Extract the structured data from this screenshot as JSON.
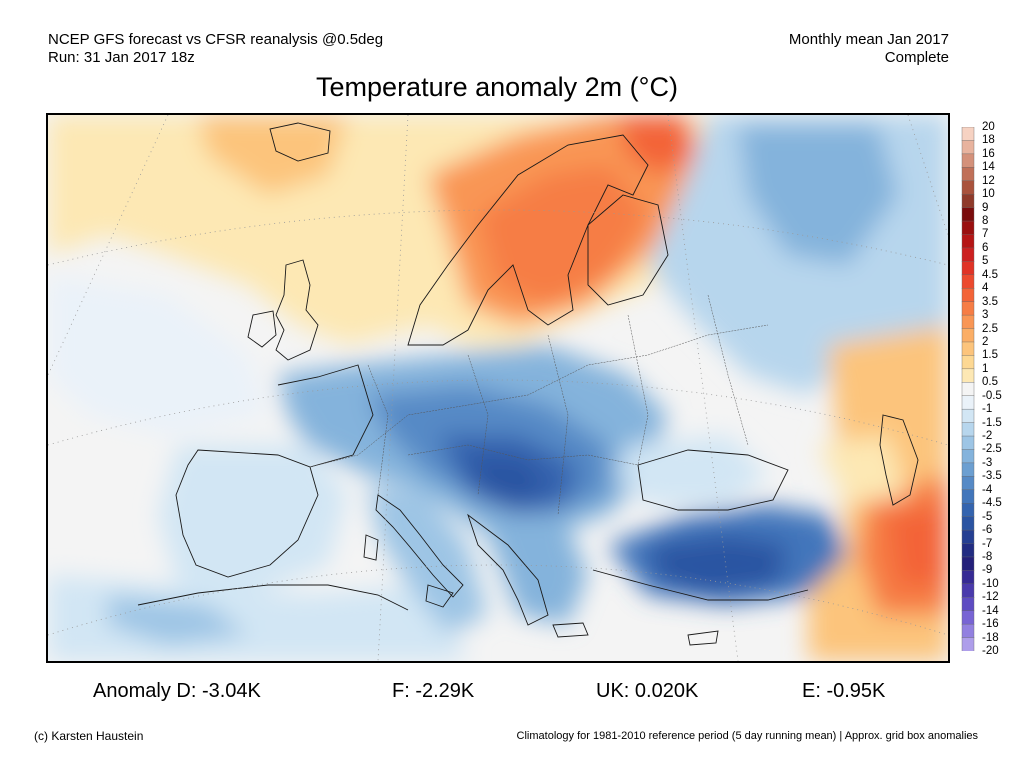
{
  "header": {
    "left_line1": "NCEP GFS forecast vs CFSR reanalysis @0.5deg",
    "left_line2": "Run: 31 Jan 2017 18z",
    "right_line1": "Monthly mean Jan 2017",
    "right_line2": "Complete"
  },
  "title": "Temperature anomaly 2m (°C)",
  "colorbar": {
    "unit": "°C",
    "levels": [
      "20",
      "18",
      "16",
      "14",
      "12",
      "10",
      "9",
      "8",
      "7",
      "6",
      "5",
      "4.5",
      "4",
      "3.5",
      "3",
      "2.5",
      "2",
      "1.5",
      "1",
      "0.5",
      "-0.5",
      "-1",
      "-1.5",
      "-2",
      "-2.5",
      "-3",
      "-3.5",
      "-4",
      "-4.5",
      "-5",
      "-6",
      "-7",
      "-8",
      "-9",
      "-10",
      "-12",
      "-14",
      "-16",
      "-18",
      "-20"
    ],
    "colors": [
      "#f6d2c2",
      "#e8b39e",
      "#d4917a",
      "#c07058",
      "#a9523c",
      "#8f3a2a",
      "#7a0c0c",
      "#9a0f0f",
      "#b51515",
      "#cc2020",
      "#e03326",
      "#ec4a2e",
      "#f36438",
      "#f67d45",
      "#f99655",
      "#fbae66",
      "#fcc47c",
      "#fdd893",
      "#fde8b4",
      "#f4f4f4",
      "#eaf2f9",
      "#d2e6f4",
      "#b7d6ed",
      "#9dc5e5",
      "#84b3dc",
      "#6c9fd1",
      "#568ac6",
      "#4276bb",
      "#3464af",
      "#2b54a2",
      "#253f92",
      "#222c82",
      "#24207a",
      "#362a94",
      "#4a3aac",
      "#5e4cc2",
      "#7864d4",
      "#9280e0",
      "#ae9eea",
      "#cdc2f3"
    ]
  },
  "anomalies": [
    {
      "label": "Anomaly D:",
      "value": "-3.04K"
    },
    {
      "label": "F:",
      "value": "-2.29K"
    },
    {
      "label": "UK:",
      "value": "0.020K"
    },
    {
      "label": "E:",
      "value": "-0.95K"
    }
  ],
  "footer": {
    "credit": "(c) Karsten Haustein",
    "note": "Climatology for 1981-2010 reference period (5 day running mean) | Approx. grid box anomalies"
  }
}
